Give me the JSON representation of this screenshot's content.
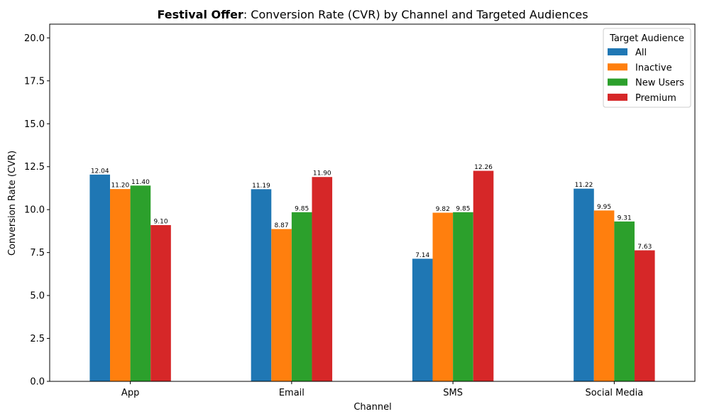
{
  "chart_data": {
    "type": "bar",
    "title_bold": "Festival Offer",
    "title_rest": ": Conversion Rate (CVR) by Channel and Targeted Audiences",
    "xlabel": "Channel",
    "ylabel": "Conversion Rate (CVR)",
    "ylim": [
      0,
      20.8
    ],
    "yticks": [
      "0.0",
      "2.5",
      "5.0",
      "7.5",
      "10.0",
      "12.5",
      "15.0",
      "17.5",
      "20.0"
    ],
    "ytick_values": [
      0,
      2.5,
      5,
      7.5,
      10,
      12.5,
      15,
      17.5,
      20
    ],
    "categories": [
      "App",
      "Email",
      "SMS",
      "Social Media"
    ],
    "legend_title": "Target Audience",
    "legend_position": "top-right",
    "grid": false,
    "series": [
      {
        "name": "All",
        "color": "#1f77b4",
        "values": [
          12.04,
          11.19,
          7.14,
          11.22
        ],
        "labels": [
          "12.04",
          "11.19",
          "7.14",
          "11.22"
        ]
      },
      {
        "name": "Inactive",
        "color": "#ff7f0e",
        "values": [
          11.2,
          8.87,
          9.82,
          9.95
        ],
        "labels": [
          "11.20",
          "8.87",
          "9.82",
          "9.95"
        ]
      },
      {
        "name": "New Users",
        "color": "#2ca02c",
        "values": [
          11.4,
          9.85,
          9.85,
          9.31
        ],
        "labels": [
          "11.40",
          "9.85",
          "9.85",
          "9.31"
        ]
      },
      {
        "name": "Premium",
        "color": "#d62728",
        "values": [
          9.1,
          11.9,
          12.26,
          7.63
        ],
        "labels": [
          "9.10",
          "11.90",
          "12.26",
          "7.63"
        ]
      }
    ]
  }
}
